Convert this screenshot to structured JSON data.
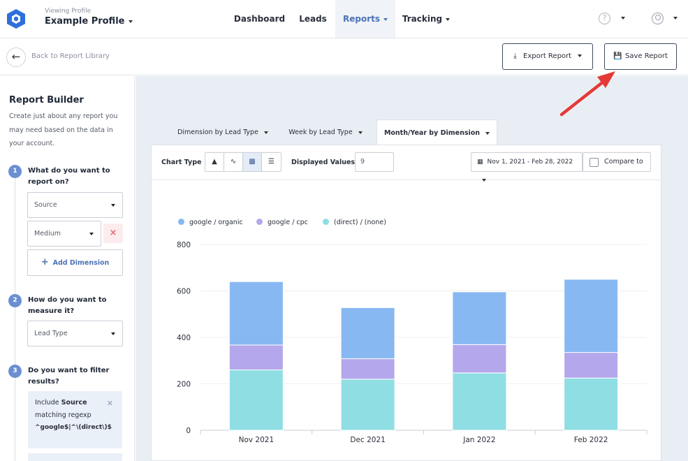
{
  "header": {
    "profile_caption": "Viewing Profile",
    "profile_name": "Example Profile",
    "nav": [
      {
        "label": "Dashboard",
        "active": false,
        "dropdown": false
      },
      {
        "label": "Leads",
        "active": false,
        "dropdown": false
      },
      {
        "label": "Reports",
        "active": true,
        "dropdown": true
      },
      {
        "label": "Tracking",
        "active": false,
        "dropdown": true
      }
    ],
    "help_glyph": "?"
  },
  "subbar": {
    "back_label": "Back to Report Library",
    "export_label": "Export Report",
    "save_label": "Save Report"
  },
  "sidebar": {
    "title": "Report Builder",
    "description": "Create just about any report you may need based on the data in your account.",
    "step1": {
      "num": "1",
      "question": "What do you want to report on?",
      "select1": "Source",
      "select2": "Medium",
      "add_label": "Add Dimension"
    },
    "step2": {
      "num": "2",
      "question": "How do you want to measure it?",
      "select": "Lead Type"
    },
    "step3": {
      "num": "3",
      "question": "Do you want to filter results?",
      "filter_include": "Include",
      "filter_field": "Source",
      "filter_op": "matching regexp",
      "filter_value": "^google$|^\\(direct\\)$"
    }
  },
  "tabs": [
    {
      "label": "Dimension by Lead Type",
      "active": false
    },
    {
      "label": "Week by Lead Type",
      "active": false
    },
    {
      "label": "Month/Year by Dimension",
      "active": true
    }
  ],
  "toolbar": {
    "chart_type_label": "Chart Type",
    "displayed_values_label": "Displayed Values",
    "displayed_values": "9",
    "date_range": "Nov 1, 2021 - Feb 28, 2022",
    "compare_label": "Compare to"
  },
  "colors": {
    "google_organic": "#88b8f2",
    "google_cpc": "#b4a7eb",
    "direct_none": "#8fdee3",
    "accent": "#4a73b5",
    "arrow": "#e53935"
  },
  "chart_data": {
    "type": "bar",
    "stacked": true,
    "categories": [
      "Nov 2021",
      "Dec 2021",
      "Jan 2022",
      "Feb 2022"
    ],
    "series": [
      {
        "name": "google / organic",
        "values": [
          273,
          220,
          227,
          315
        ]
      },
      {
        "name": "google / cpc",
        "values": [
          107,
          88,
          122,
          110
        ]
      },
      {
        "name": "(direct) / (none)",
        "values": [
          260,
          220,
          247,
          225
        ]
      }
    ],
    "yticks": [
      "0",
      "200",
      "400",
      "600",
      "800"
    ],
    "ylim": [
      0,
      800
    ],
    "legend_position": "top-left",
    "grid": true
  }
}
